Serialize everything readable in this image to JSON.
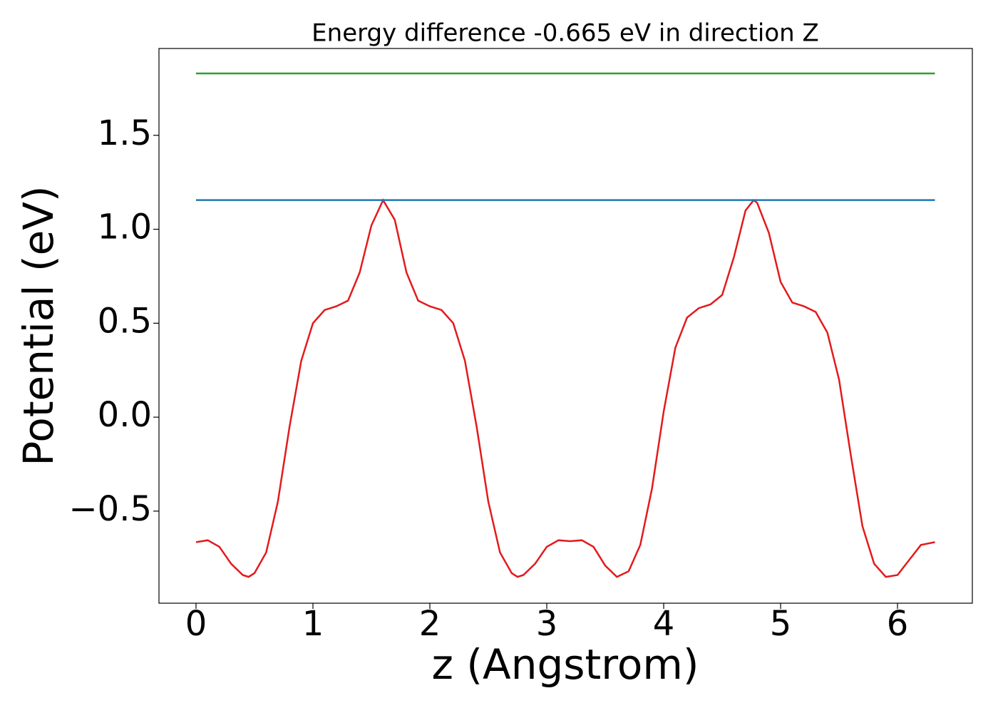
{
  "chart_data": {
    "type": "line",
    "title": "Energy difference -0.665 eV in direction Z",
    "xlabel": "z (Angstrom)",
    "ylabel": "Potential (eV)",
    "xlim": [
      -0.317,
      6.64
    ],
    "ylim": [
      -0.99,
      1.962
    ],
    "xticks": [
      0,
      1,
      2,
      3,
      4,
      5,
      6
    ],
    "yticks": [
      {
        "value": -0.5,
        "label": "−0.5"
      },
      {
        "value": 0.0,
        "label": "0.0"
      },
      0.5,
      {
        "value": 1.0,
        "label": "1.0"
      },
      1.5
    ],
    "grid": false,
    "series": [
      {
        "color": "#e31a1c",
        "x": [
          0,
          0.1,
          0.2,
          0.3,
          0.4,
          0.45,
          0.5,
          0.6,
          0.7,
          0.8,
          0.9,
          1.0,
          1.1,
          1.2,
          1.3,
          1.4,
          1.5,
          1.6,
          1.7,
          1.8,
          1.9,
          2.0,
          2.1,
          2.2,
          2.3,
          2.4,
          2.5,
          2.6,
          2.7,
          2.75,
          2.8,
          2.9,
          3.0,
          3.1,
          3.2,
          3.3,
          3.4,
          3.5,
          3.6,
          3.7,
          3.8,
          3.9,
          4.0,
          4.1,
          4.2,
          4.3,
          4.4,
          4.5,
          4.6,
          4.7,
          4.77,
          4.8,
          4.9,
          5.0,
          5.1,
          5.2,
          5.3,
          5.4,
          5.5,
          5.6,
          5.7,
          5.8,
          5.9,
          6.0,
          6.1,
          6.2,
          6.32
        ],
        "values": [
          -0.665,
          -0.655,
          -0.69,
          -0.78,
          -0.84,
          -0.85,
          -0.83,
          -0.72,
          -0.45,
          -0.05,
          0.3,
          0.5,
          0.57,
          0.59,
          0.62,
          0.77,
          1.02,
          1.155,
          1.05,
          0.77,
          0.62,
          0.59,
          0.57,
          0.5,
          0.3,
          -0.05,
          -0.45,
          -0.72,
          -0.83,
          -0.85,
          -0.84,
          -0.78,
          -0.69,
          -0.655,
          -0.66,
          -0.655,
          -0.69,
          -0.79,
          -0.85,
          -0.82,
          -0.68,
          -0.38,
          0.03,
          0.37,
          0.53,
          0.58,
          0.6,
          0.65,
          0.85,
          1.1,
          1.155,
          1.14,
          0.98,
          0.72,
          0.61,
          0.59,
          0.56,
          0.45,
          0.2,
          -0.2,
          -0.58,
          -0.78,
          -0.85,
          -0.84,
          -0.76,
          -0.68,
          -0.665
        ]
      },
      {
        "color": "#1f77b4",
        "x": [
          0,
          6.32
        ],
        "values": [
          1.155,
          1.155
        ]
      },
      {
        "color": "#2ca02c",
        "x": [
          0,
          6.32
        ],
        "values": [
          1.829,
          1.829
        ]
      }
    ]
  }
}
